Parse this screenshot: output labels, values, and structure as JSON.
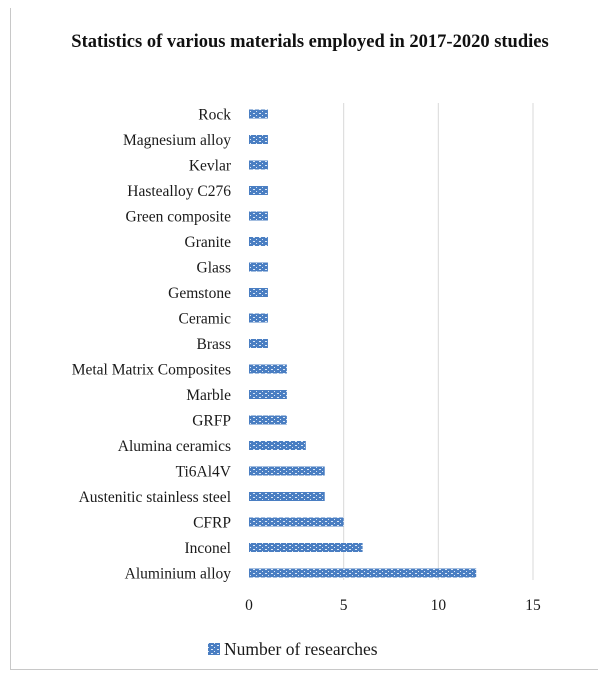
{
  "chart_data": {
    "type": "bar",
    "orientation": "horizontal",
    "title": "Statistics of various materials employed in 2017-2020 studies",
    "categories": [
      "Rock",
      "Magnesium alloy",
      "Kevlar",
      "Hastealloy C276",
      "Green composite",
      "Granite",
      "Glass",
      "Gemstone",
      "Ceramic",
      "Brass",
      "Metal Matrix Composites",
      "Marble",
      "GRFP",
      "Alumina ceramics",
      "Ti6Al4V",
      "Austenitic stainless steel",
      "CFRP",
      "Inconel",
      "Aluminium alloy"
    ],
    "series": [
      {
        "name": "Number of researches",
        "values": [
          1,
          1,
          1,
          1,
          1,
          1,
          1,
          1,
          1,
          1,
          2,
          2,
          2,
          3,
          4,
          4,
          5,
          6,
          12
        ]
      }
    ],
    "xticks": [
      "0",
      "5",
      "10",
      "15"
    ],
    "xlim": [
      0,
      15
    ],
    "grid": "vertical",
    "legend": "bottom",
    "colors": {
      "bar": "#4a7ec2",
      "bar_pattern": "#dce8f6",
      "grid": "#d9d9d9"
    }
  }
}
